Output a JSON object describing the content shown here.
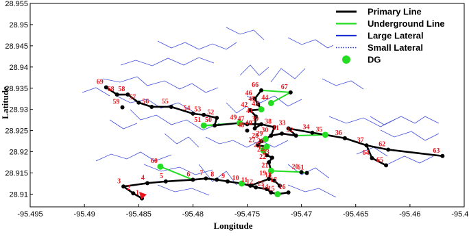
{
  "axes": {
    "xlabel": "Longitude",
    "ylabel": "Latitude",
    "xticks": [
      "-95.495",
      "-95.49",
      "-95.485",
      "-95.48",
      "-95.475",
      "-95.47",
      "-95.465",
      "-95.46",
      "-95.455"
    ],
    "yticks": [
      "28.955",
      "28.95",
      "28.945",
      "28.94",
      "28.935",
      "28.93",
      "28.925",
      "28.92",
      "28.915",
      "28.91"
    ],
    "xlim": [
      -95.495,
      -95.455
    ],
    "ylim": [
      28.907,
      28.955
    ]
  },
  "legend": {
    "items": [
      {
        "label": "Primary Line",
        "kind": "line",
        "color": "#000000"
      },
      {
        "label": "Underground Line",
        "kind": "line",
        "color": "#22dd22"
      },
      {
        "label": "Large Lateral",
        "kind": "line",
        "color": "#1f2fd6"
      },
      {
        "label": "Small Lateral",
        "kind": "dotted",
        "color": "#1f2fd6"
      },
      {
        "label": "DG",
        "kind": "dot",
        "color": "#22dd22"
      }
    ]
  },
  "colors": {
    "primary": "#000000",
    "underground": "#22dd22",
    "lateral": "#1f2fd6",
    "label": "#e8141c",
    "dg": "#22dd22"
  },
  "nodes": [
    {
      "id": "1",
      "lon": -95.4847,
      "lat": 28.909
    },
    {
      "id": "2",
      "lon": -95.4855,
      "lat": 28.9102
    },
    {
      "id": "3",
      "lon": -95.4864,
      "lat": 28.9118
    },
    {
      "id": "4",
      "lon": -95.4842,
      "lat": 28.9126
    },
    {
      "id": "5",
      "lon": -95.4825,
      "lat": 28.913
    },
    {
      "id": "6",
      "lon": -95.48,
      "lat": 28.9134
    },
    {
      "id": "7",
      "lon": -95.4788,
      "lat": 28.9137
    },
    {
      "id": "8",
      "lon": -95.4778,
      "lat": 28.9134
    },
    {
      "id": "9",
      "lon": -95.4768,
      "lat": 28.913
    },
    {
      "id": "10",
      "lon": -95.4755,
      "lat": 28.9125
    },
    {
      "id": "11",
      "lon": -95.4747,
      "lat": 28.912
    },
    {
      "id": "12",
      "lon": -95.4742,
      "lat": 28.9116
    },
    {
      "id": "13",
      "lon": -95.4732,
      "lat": 28.9112
    },
    {
      "id": "14",
      "lon": -95.4728,
      "lat": 28.9104
    },
    {
      "id": "15",
      "lon": -95.4722,
      "lat": 28.91
    },
    {
      "id": "16",
      "lon": -95.4712,
      "lat": 28.9104
    },
    {
      "id": "17",
      "lon": -95.472,
      "lat": 28.912
    },
    {
      "id": "18",
      "lon": -95.4725,
      "lat": 28.9132
    },
    {
      "id": "19",
      "lon": -95.473,
      "lat": 28.9136
    },
    {
      "id": "20",
      "lon": -95.47,
      "lat": 28.9152
    },
    {
      "id": "21",
      "lon": -95.4728,
      "lat": 28.9155
    },
    {
      "id": "22",
      "lon": -95.473,
      "lat": 28.9175
    },
    {
      "id": "23",
      "lon": -95.4727,
      "lat": 28.9186
    },
    {
      "id": "24",
      "lon": -95.4732,
      "lat": 28.9192
    },
    {
      "id": "25",
      "lon": -95.4735,
      "lat": 28.9203
    },
    {
      "id": "26",
      "lon": -95.4732,
      "lat": 28.9212
    },
    {
      "id": "27",
      "lon": -95.474,
      "lat": 28.9215
    },
    {
      "id": "28",
      "lon": -95.4737,
      "lat": 28.9225
    },
    {
      "id": "29",
      "lon": -95.4733,
      "lat": 28.923
    },
    {
      "id": "30",
      "lon": -95.4728,
      "lat": 28.9238
    },
    {
      "id": "31",
      "lon": -95.4718,
      "lat": 28.9243
    },
    {
      "id": "32",
      "lon": -95.4705,
      "lat": 28.9238
    },
    {
      "id": "33",
      "lon": -95.4712,
      "lat": 28.9255
    },
    {
      "id": "34",
      "lon": -95.469,
      "lat": 28.9245
    },
    {
      "id": "35",
      "lon": -95.4678,
      "lat": 28.924
    },
    {
      "id": "36",
      "lon": -95.466,
      "lat": 28.9232
    },
    {
      "id": "37",
      "lon": -95.464,
      "lat": 28.9215
    },
    {
      "id": "38",
      "lon": -95.4725,
      "lat": 28.9258
    },
    {
      "id": "39",
      "lon": -95.4737,
      "lat": 28.9265
    },
    {
      "id": "40",
      "lon": -95.4743,
      "lat": 28.9255
    },
    {
      "id": "41",
      "lon": -95.4742,
      "lat": 28.9283
    },
    {
      "id": "42",
      "lon": -95.4747,
      "lat": 28.9298
    },
    {
      "id": "43",
      "lon": -95.4737,
      "lat": 28.93
    },
    {
      "id": "44",
      "lon": -95.4728,
      "lat": 28.9315
    },
    {
      "id": "45",
      "lon": -95.474,
      "lat": 28.9312
    },
    {
      "id": "46",
      "lon": -95.4743,
      "lat": 28.9325
    },
    {
      "id": "47",
      "lon": -95.475,
      "lat": 28.9265
    },
    {
      "id": "48",
      "lon": -95.475,
      "lat": 28.925
    },
    {
      "id": "49",
      "lon": -95.4757,
      "lat": 28.9268
    },
    {
      "id": "50",
      "lon": -95.478,
      "lat": 28.9262
    },
    {
      "id": "51",
      "lon": -95.479,
      "lat": 28.9262
    },
    {
      "id": "52",
      "lon": -95.4778,
      "lat": 28.928
    },
    {
      "id": "53",
      "lon": -95.479,
      "lat": 28.9287
    },
    {
      "id": "54",
      "lon": -95.48,
      "lat": 28.929
    },
    {
      "id": "55",
      "lon": -95.482,
      "lat": 28.9306
    },
    {
      "id": "56",
      "lon": -95.4838,
      "lat": 28.9306
    },
    {
      "id": "57",
      "lon": -95.485,
      "lat": 28.9316
    },
    {
      "id": "58",
      "lon": -95.486,
      "lat": 28.9335
    },
    {
      "id": "59",
      "lon": -95.4865,
      "lat": 28.9305
    },
    {
      "id": "60",
      "lon": -95.483,
      "lat": 28.9165
    },
    {
      "id": "61",
      "lon": -95.4695,
      "lat": 28.915
    },
    {
      "id": "62",
      "lon": -95.462,
      "lat": 28.9205
    },
    {
      "id": "63",
      "lon": -95.457,
      "lat": 28.919
    },
    {
      "id": "64",
      "lon": -95.4635,
      "lat": 28.9185
    },
    {
      "id": "65",
      "lon": -95.4622,
      "lat": 28.9168
    },
    {
      "id": "66",
      "lon": -95.4737,
      "lat": 28.9345
    },
    {
      "id": "67",
      "lon": -95.471,
      "lat": 28.934
    },
    {
      "id": "68",
      "lon": -95.487,
      "lat": 28.9335
    },
    {
      "id": "69",
      "lon": -95.488,
      "lat": 28.9352
    }
  ],
  "primary_lines": [
    [
      "2",
      "3",
      "4",
      "5",
      "6",
      "7",
      "8",
      "9",
      "10",
      "11",
      "12",
      "13",
      "14",
      "15",
      "16"
    ],
    [
      "11",
      "19",
      "18",
      "17"
    ],
    [
      "19",
      "21",
      "22",
      "23",
      "24",
      "25",
      "26",
      "27",
      "28",
      "29",
      "30",
      "31",
      "32",
      "33",
      "34",
      "35",
      "36",
      "37",
      "62",
      "63"
    ],
    [
      "37",
      "64",
      "65"
    ],
    [
      "30",
      "38",
      "39",
      "40",
      "41",
      "42",
      "43",
      "45",
      "46",
      "66"
    ],
    [
      "39",
      "47",
      "49",
      "50",
      "52",
      "53",
      "54",
      "55",
      "56",
      "57",
      "58",
      "68",
      "69"
    ],
    [
      "2",
      "1"
    ]
  ],
  "underground_lines": [
    [
      "50",
      "51",
      "49"
    ],
    [
      "21",
      "20",
      "61"
    ],
    [
      "66",
      "67",
      "44"
    ],
    [
      "35",
      "32"
    ],
    [
      "26",
      "27",
      "25"
    ],
    [
      "6",
      "60"
    ]
  ],
  "dg_nodes": [
    "10",
    "15",
    "21",
    "25",
    "29",
    "35",
    "43",
    "49",
    "60",
    "51",
    "44",
    "26"
  ]
}
